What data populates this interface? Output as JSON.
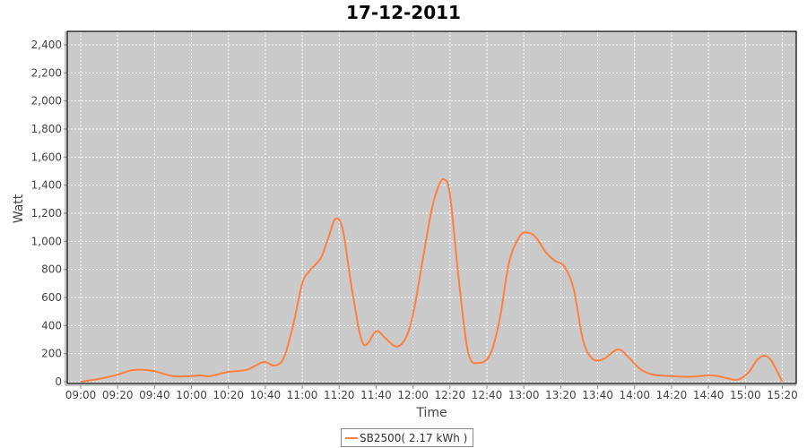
{
  "chart_data": {
    "type": "line",
    "title": "17-12-2011",
    "xlabel": "Time",
    "ylabel": "Watt",
    "ylim": [
      0,
      2500
    ],
    "yticks": [
      0,
      200,
      400,
      600,
      800,
      1000,
      1200,
      1400,
      1600,
      1800,
      2000,
      2200,
      2400
    ],
    "ytick_labels": [
      "0",
      "200",
      "400",
      "600",
      "800",
      "1,000",
      "1,200",
      "1,400",
      "1,600",
      "1,800",
      "2,000",
      "2,200",
      "2,400"
    ],
    "xticks": [
      "09:00",
      "09:20",
      "09:40",
      "10:00",
      "10:20",
      "10:40",
      "11:00",
      "11:20",
      "11:40",
      "12:00",
      "12:20",
      "12:40",
      "13:00",
      "13:20",
      "13:40",
      "14:00",
      "14:20",
      "14:40",
      "15:00",
      "15:20"
    ],
    "grid": true,
    "legend_position": "bottom",
    "series": [
      {
        "name": "SB2500( 2.17 kWh )",
        "color": "#ff7f3f",
        "x": [
          "09:00",
          "09:10",
          "09:20",
          "09:27",
          "09:33",
          "09:40",
          "09:50",
          "10:00",
          "10:05",
          "10:10",
          "10:20",
          "10:30",
          "10:39",
          "10:45",
          "10:50",
          "10:55",
          "11:00",
          "11:04",
          "11:10",
          "11:14",
          "11:18",
          "11:22",
          "11:27",
          "11:33",
          "11:40",
          "11:45",
          "11:51",
          "11:56",
          "12:00",
          "12:05",
          "12:10",
          "12:14",
          "12:17",
          "12:20",
          "12:25",
          "12:30",
          "12:36",
          "12:42",
          "12:47",
          "12:52",
          "12:58",
          "13:03",
          "13:07",
          "13:12",
          "13:17",
          "13:22",
          "13:27",
          "13:32",
          "13:37",
          "13:43",
          "13:51",
          "13:57",
          "14:03",
          "14:10",
          "14:20",
          "14:30",
          "14:40",
          "14:45",
          "14:50",
          "14:56",
          "15:02",
          "15:06",
          "15:10",
          "15:14",
          "15:20"
        ],
        "y": [
          0,
          20,
          50,
          80,
          85,
          75,
          40,
          40,
          45,
          40,
          70,
          85,
          140,
          115,
          170,
          400,
          700,
          790,
          880,
          1020,
          1160,
          1080,
          650,
          270,
          360,
          310,
          250,
          310,
          480,
          850,
          1220,
          1400,
          1440,
          1330,
          700,
          200,
          135,
          200,
          450,
          850,
          1040,
          1060,
          1020,
          920,
          860,
          820,
          660,
          300,
          165,
          160,
          230,
          170,
          90,
          50,
          40,
          35,
          45,
          40,
          25,
          15,
          70,
          150,
          185,
          150,
          0
        ]
      }
    ]
  }
}
